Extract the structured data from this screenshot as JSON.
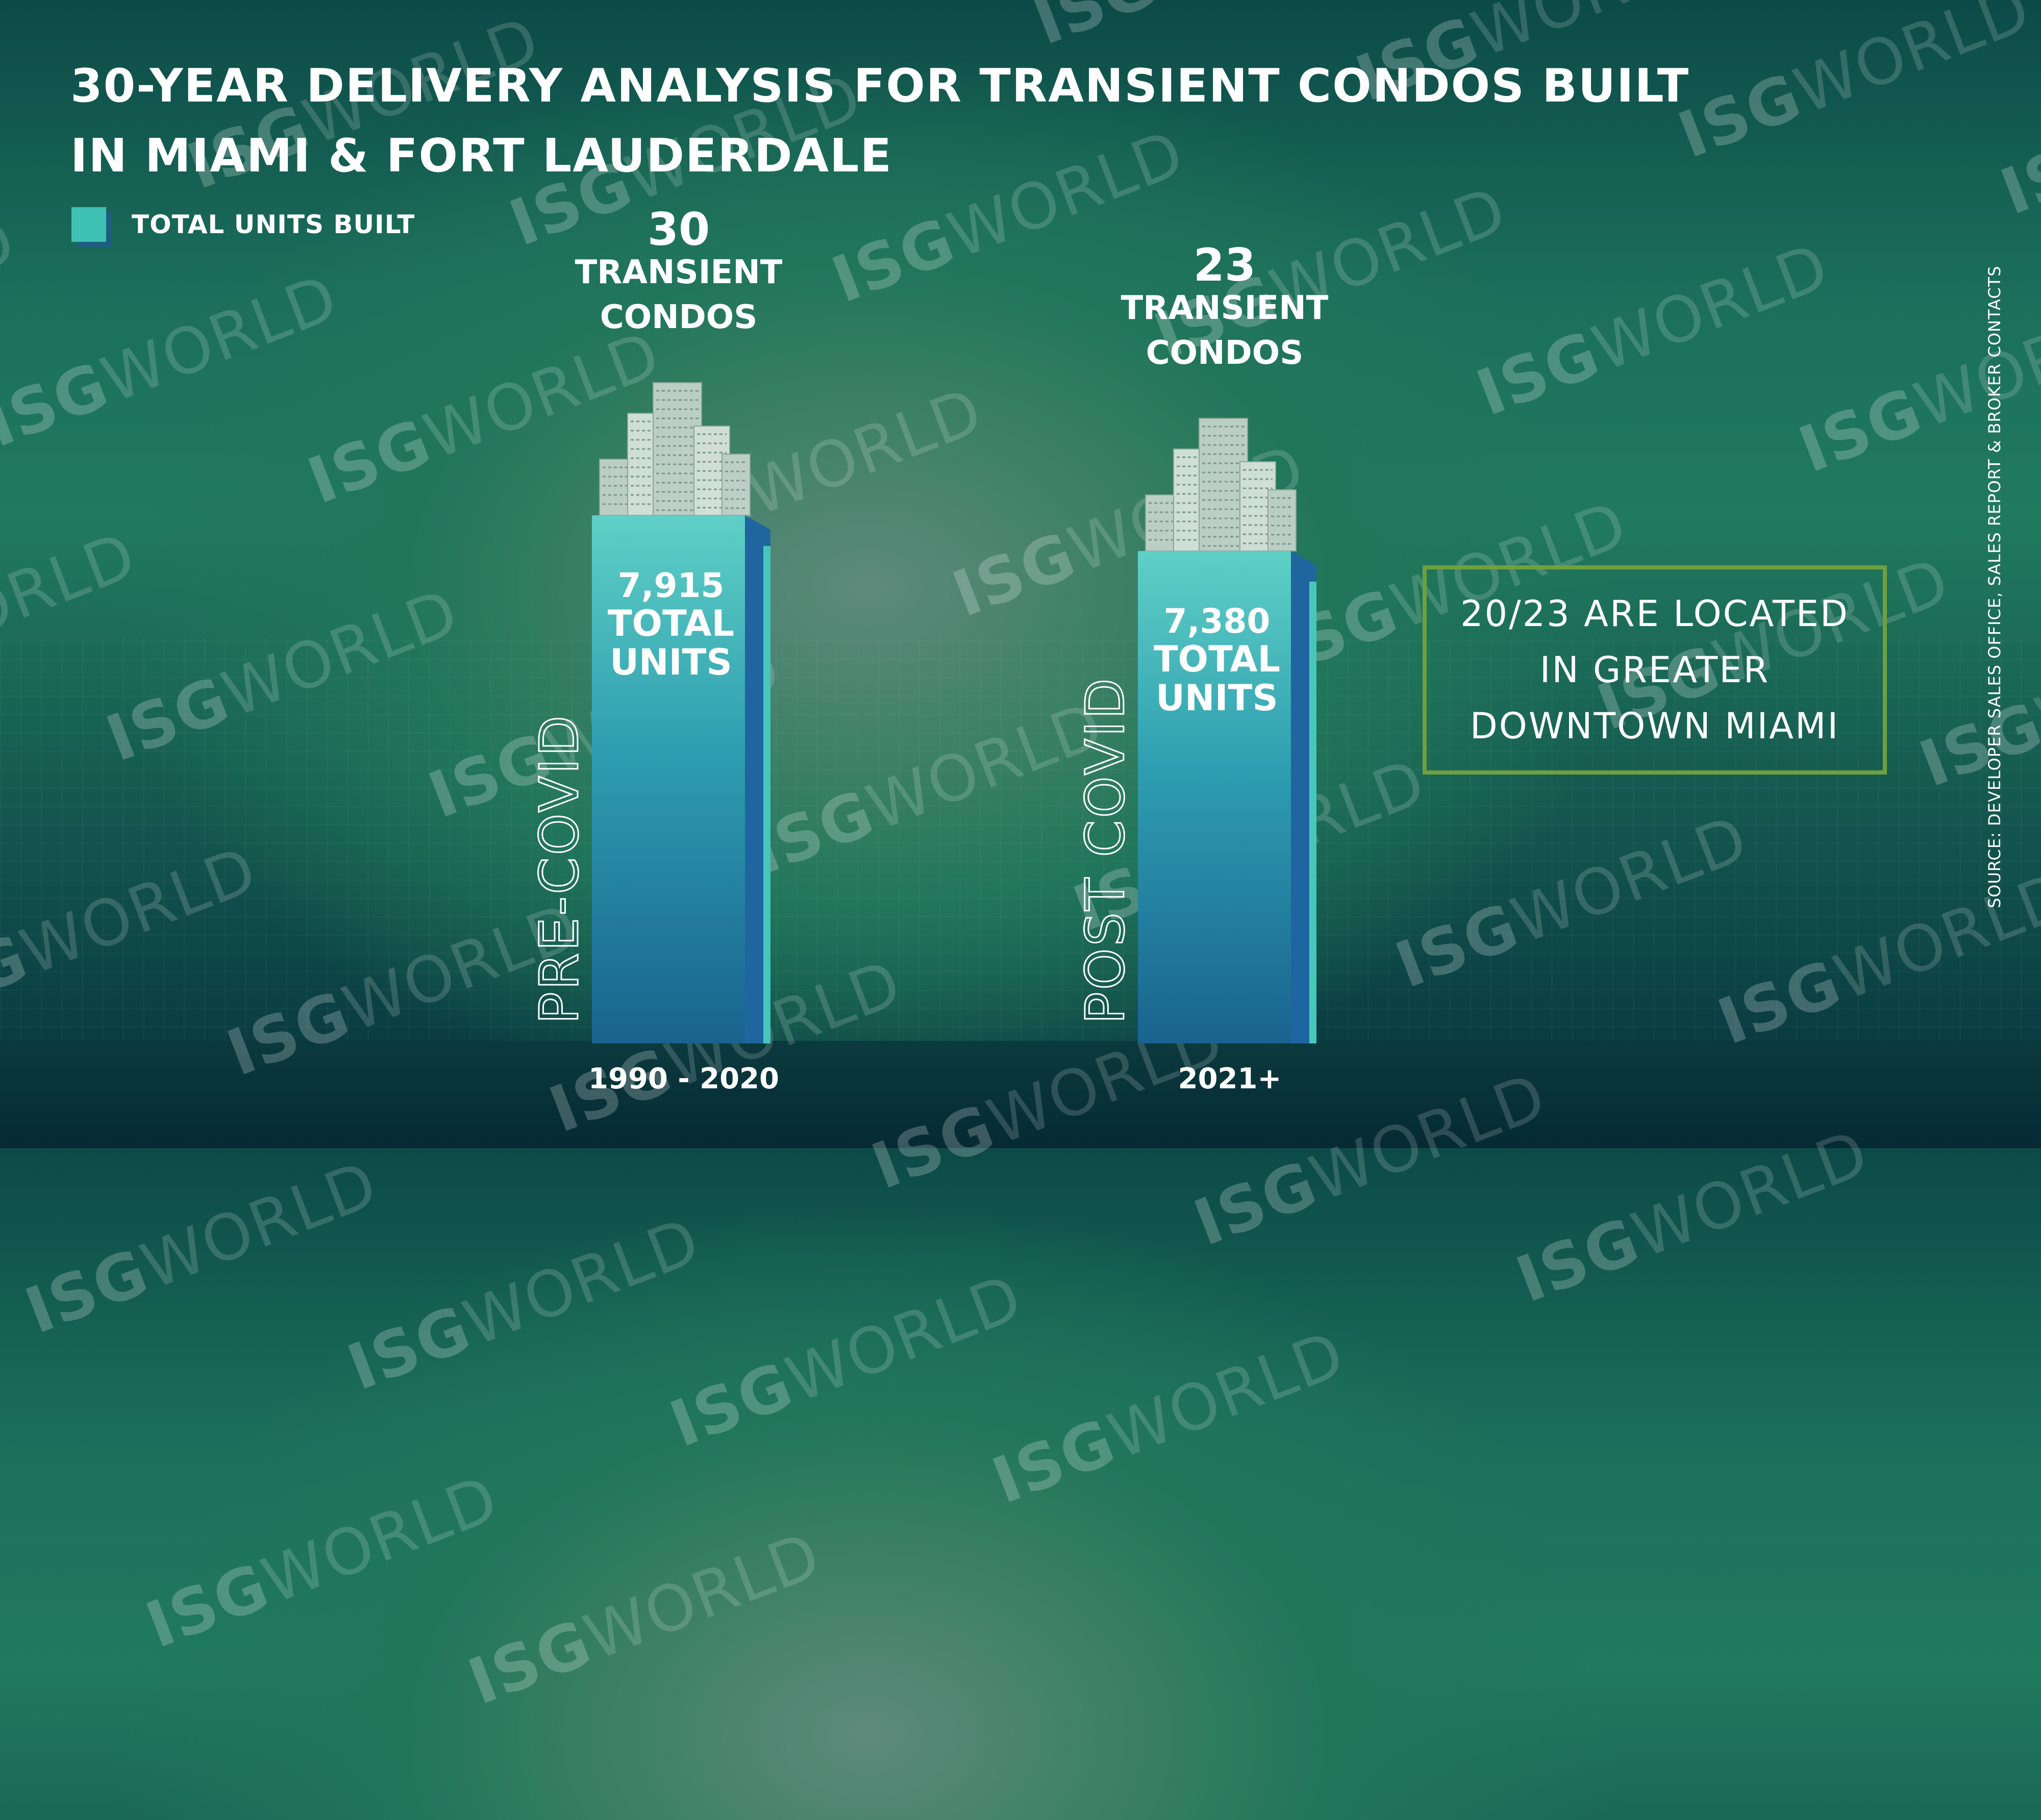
{
  "title": "30-YEAR DELIVERY ANALYSIS FOR TRANSIENT CONDOS BUILT IN MIAMI & FORT LAUDERDALE",
  "legend": {
    "label": "TOTAL UNITS BUILT"
  },
  "watermark": {
    "brand_bold": "ISG",
    "brand_light": "WORLD"
  },
  "callout": "20/23 ARE LOCATED IN GREATER DOWNTOWN MIAMI",
  "source": "SOURCE: DEVELOPER SALES OFFICE, SALES REPORT & BROKER CONTACTS",
  "colors": {
    "bar_top": "#5fd0c6",
    "bar_mid": "#2e9db0",
    "bar_bottom": "#19638f",
    "bar_side": "#1f66a0",
    "bar_side_edge": "#47c7bb",
    "legend_swatch": "#3fc2b3",
    "callout_border": "#6f9f3f"
  },
  "chart_data": {
    "type": "bar",
    "title": "30-YEAR DELIVERY ANALYSIS FOR TRANSIENT CONDOS BUILT IN MIAMI & FORT LAUDERDALE",
    "series": [
      {
        "name": "TOTAL UNITS BUILT",
        "values": [
          7915,
          7380
        ]
      }
    ],
    "categories": [
      "1990 - 2020",
      "2021+"
    ],
    "period_labels": [
      "PRE-COVID",
      "POST COVID"
    ],
    "condo_counts": [
      30,
      23
    ],
    "condo_label": [
      "TRANSIENT",
      "CONDOS"
    ],
    "value_labels": [
      [
        "7,915",
        "TOTAL",
        "UNITS"
      ],
      [
        "7,380",
        "TOTAL",
        "UNITS"
      ]
    ],
    "value_scale_max": 7915,
    "xlabel": "",
    "ylabel": "",
    "legend_position": "top-left",
    "grid": false
  }
}
